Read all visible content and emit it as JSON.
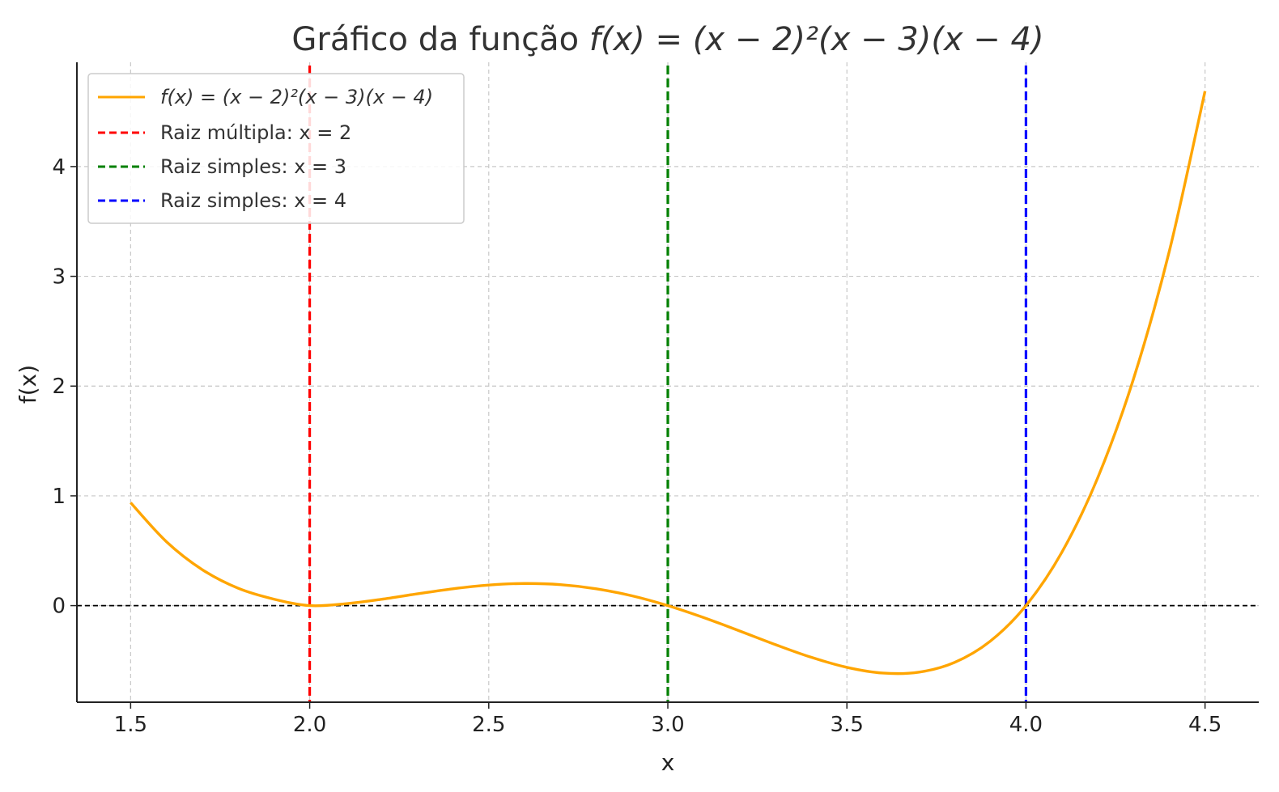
{
  "chart_data": {
    "type": "line",
    "title_prefix": "Gráfico da função ",
    "title_math": "f(x) = (x − 2)²(x − 3)(x − 4)",
    "xlabel": "x",
    "ylabel": "f(x)",
    "xlim": [
      1.35,
      4.65
    ],
    "ylim": [
      -0.88,
      4.95
    ],
    "xticks": [
      1.5,
      2.0,
      2.5,
      3.0,
      3.5,
      4.0,
      4.5
    ],
    "xtick_labels": [
      "1.5",
      "2.0",
      "2.5",
      "3.0",
      "3.5",
      "4.0",
      "4.5"
    ],
    "yticks": [
      0,
      1,
      2,
      3,
      4
    ],
    "ytick_labels": [
      "0",
      "1",
      "2",
      "3",
      "4"
    ],
    "grid": true,
    "legend_position": "top-left",
    "series": [
      {
        "name": "f(x) = (x − 2)²(x − 3)(x − 4)",
        "color": "#FFA500",
        "style": "solid",
        "x": [
          1.5,
          1.6,
          1.7,
          1.8,
          1.9,
          2.0,
          2.1,
          2.2,
          2.3,
          2.4,
          2.5,
          2.6,
          2.7,
          2.8,
          2.9,
          3.0,
          3.1,
          3.2,
          3.3,
          3.4,
          3.5,
          3.6,
          3.7,
          3.8,
          3.9,
          4.0,
          4.1,
          4.2,
          4.3,
          4.4,
          4.5
        ],
        "y": [
          0.9375,
          0.5824,
          0.3276,
          0.1584,
          0.0589,
          0.0,
          0.0171,
          0.0576,
          0.1071,
          0.1536,
          0.1875,
          0.2016,
          0.1911,
          0.1536,
          0.0891,
          0.0,
          -0.1089,
          -0.2304,
          -0.3549,
          -0.4704,
          -0.5625,
          -0.6144,
          -0.6069,
          -0.5184,
          -0.3249,
          0.0,
          0.4851,
          1.1616,
          2.0631,
          3.2256,
          4.6875
        ]
      }
    ],
    "vlines": [
      {
        "name": "Raiz múltipla: x = 2",
        "x": 2.0,
        "color": "#FF0000",
        "style": "dashed"
      },
      {
        "name": "Raiz simples: x = 3",
        "x": 3.0,
        "color": "#008000",
        "style": "dashed"
      },
      {
        "name": "Raiz simples: x = 4",
        "x": 4.0,
        "color": "#0000FF",
        "style": "dashed"
      }
    ],
    "hlines": [
      {
        "y": 0,
        "color": "#000000",
        "style": "dashed"
      }
    ]
  }
}
